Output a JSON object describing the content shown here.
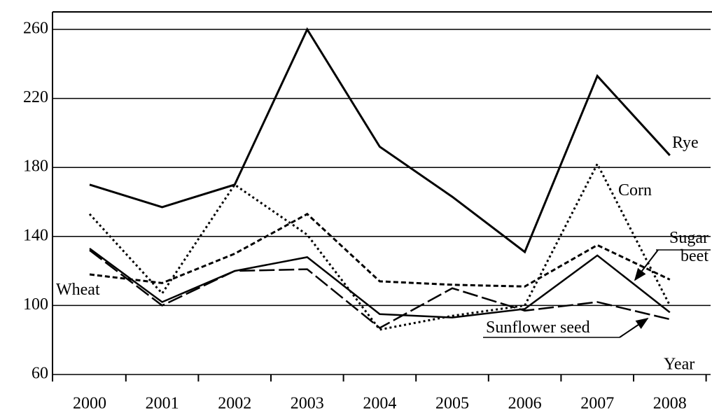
{
  "chart_data": {
    "type": "line",
    "x_label": "Year",
    "categories": [
      "2000",
      "2001",
      "2002",
      "2003",
      "2004",
      "2005",
      "2006",
      "2007",
      "2008"
    ],
    "series": [
      {
        "name": "Rye",
        "color": "#000000",
        "values": [
          170,
          157,
          170,
          260,
          192,
          163,
          131,
          233,
          187
        ]
      },
      {
        "name": "Corn",
        "color": "#000000",
        "values": [
          153,
          107,
          170,
          141,
          86,
          94,
          100,
          182,
          100
        ]
      },
      {
        "name": "Sugar beet",
        "color": "#000000",
        "values": [
          118,
          113,
          130,
          153,
          114,
          112,
          111,
          135,
          115
        ]
      },
      {
        "name": "Wheat",
        "color": "#000000",
        "values": [
          133,
          102,
          120,
          128,
          95,
          93,
          98,
          129,
          96
        ]
      },
      {
        "name": "Sunflower seed",
        "color": "#000000",
        "values": [
          132,
          100,
          120,
          121,
          87,
          110,
          97,
          102,
          92
        ]
      }
    ],
    "ylim": [
      60,
      260
    ],
    "yticks": [
      60,
      100,
      140,
      180,
      220,
      260
    ],
    "grid": true
  }
}
